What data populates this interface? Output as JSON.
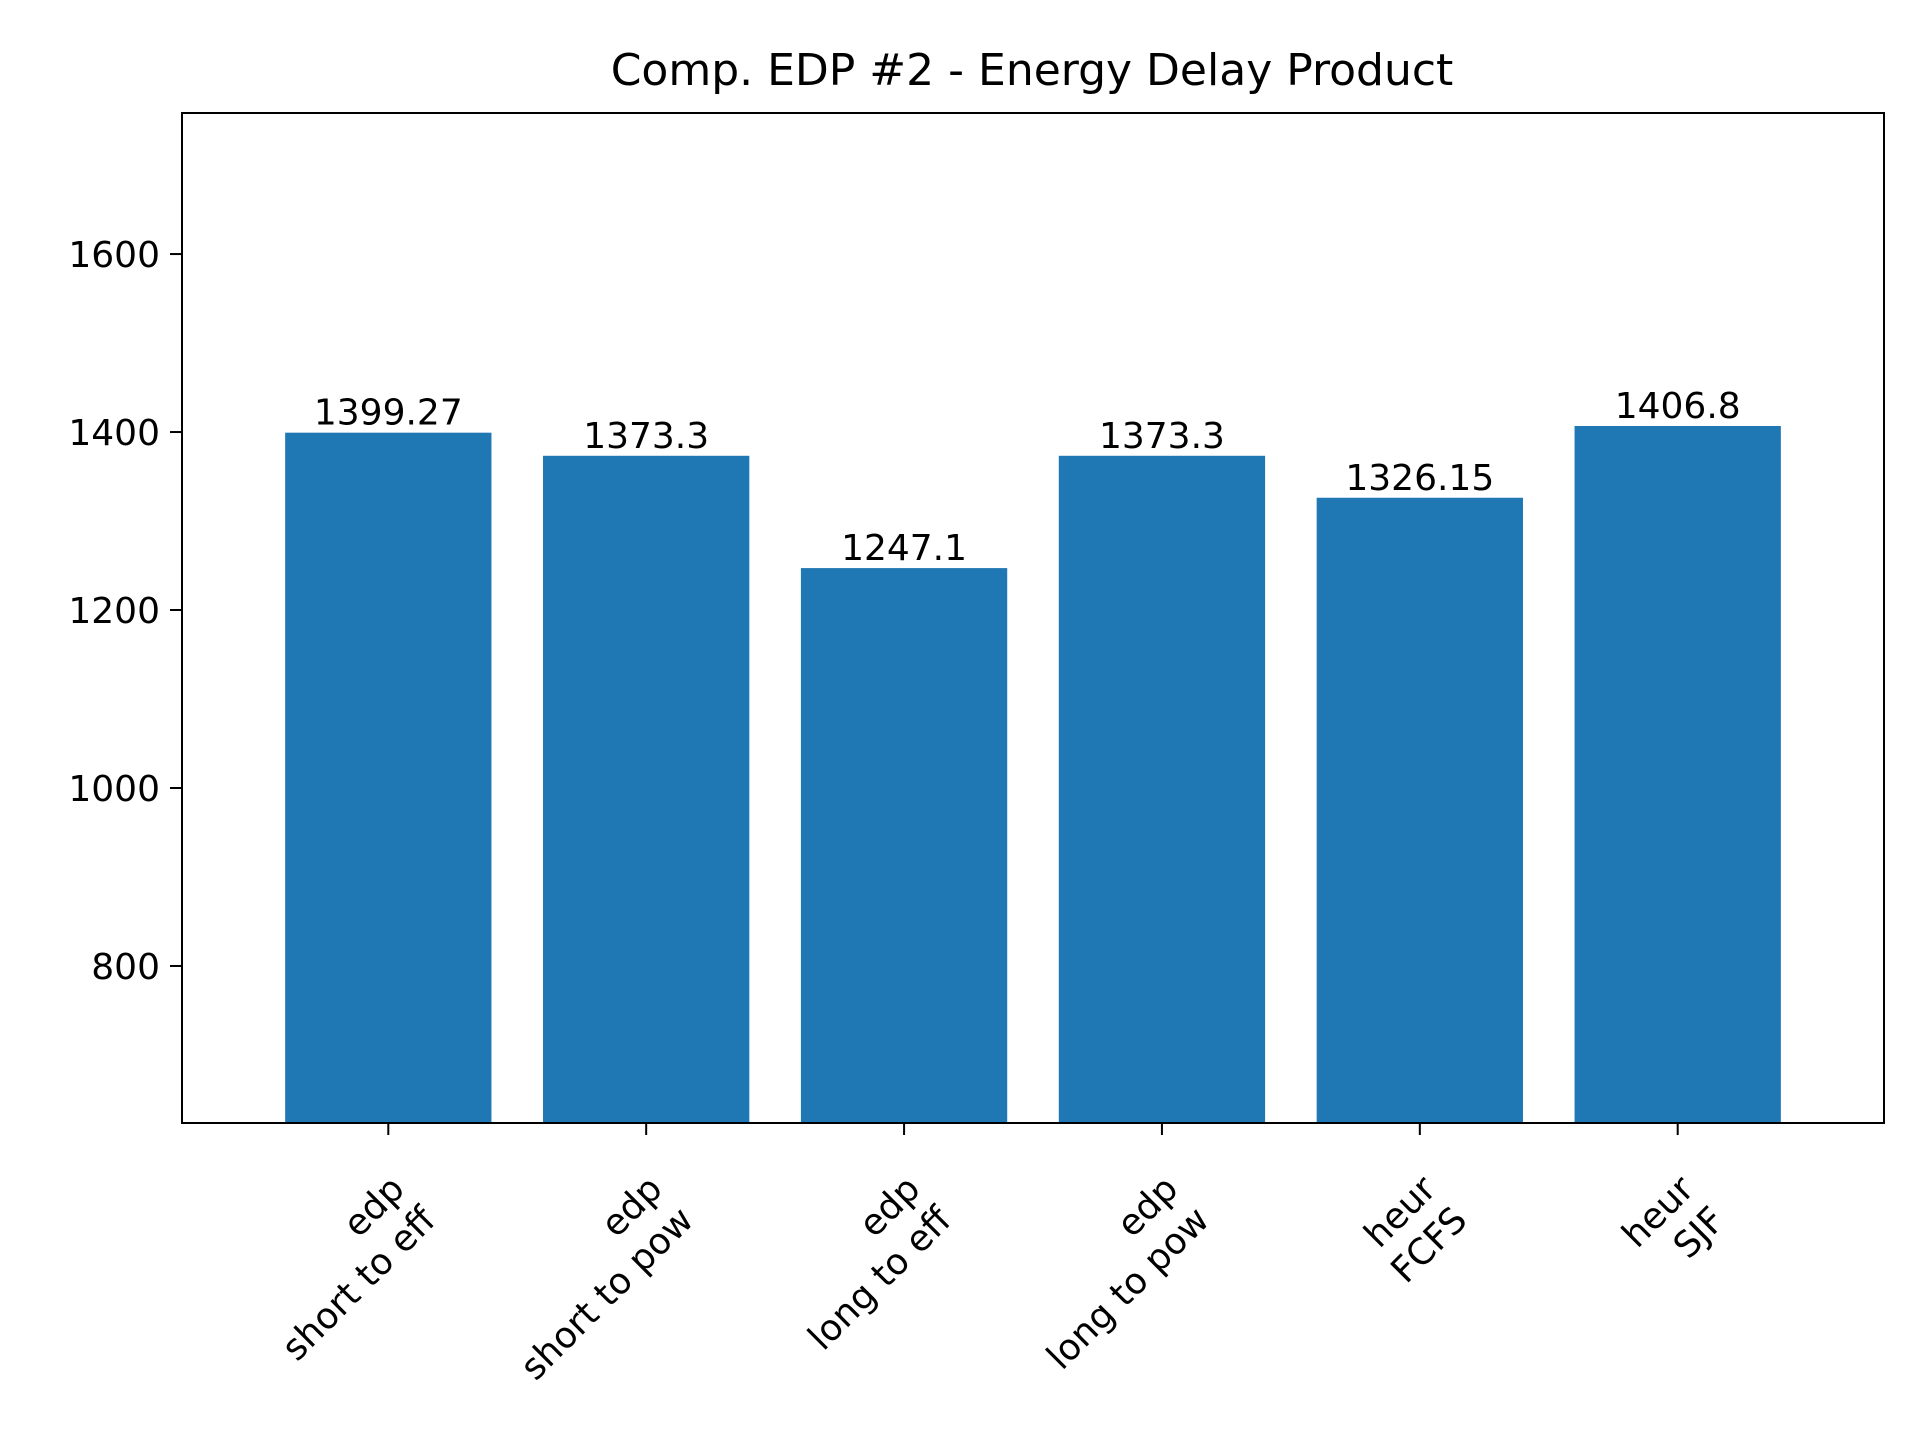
{
  "chart_data": {
    "type": "bar",
    "title": "Comp. EDP #2 - Energy Delay Product",
    "xlabel": "",
    "ylabel": "",
    "categories": [
      [
        "edp",
        "short to eff"
      ],
      [
        "edp",
        "short to pow"
      ],
      [
        "edp",
        "long to eff"
      ],
      [
        "edp",
        "long to pow"
      ],
      [
        "heur",
        "FCFS"
      ],
      [
        "heur",
        "SJF"
      ]
    ],
    "values": [
      1399.27,
      1373.3,
      1247.1,
      1373.3,
      1326.15,
      1406.8
    ],
    "value_labels": [
      "1399.27",
      "1373.3",
      "1247.1",
      "1373.3",
      "1326.15",
      "1406.8"
    ],
    "ylim": [
      623.55,
      1758.5
    ],
    "yticks": [
      800,
      1000,
      1200,
      1400,
      1600
    ],
    "ytick_labels": [
      "800",
      "1000",
      "1200",
      "1400",
      "1600"
    ],
    "grid": false,
    "bar_color": "#1f77b4"
  }
}
